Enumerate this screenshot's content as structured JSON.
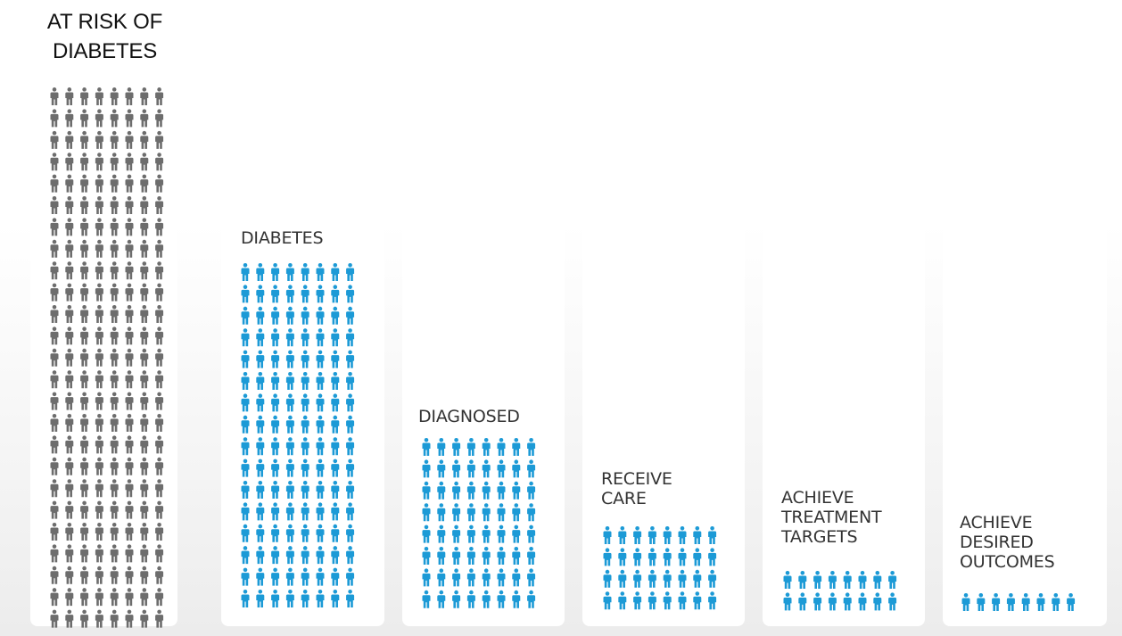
{
  "chart_data": {
    "type": "pictograph",
    "unit": "person-icon",
    "icons_per_row": 8,
    "categories": [
      "AT RISK OF DIABETES",
      "DIABETES",
      "DIAGNOSED",
      "RECEIVE CARE",
      "ACHIEVE TREATMENT TARGETS",
      "ACHIEVE DESIRED OUTCOMES"
    ],
    "values": [
      200,
      128,
      64,
      32,
      16,
      8
    ],
    "colors": [
      "#6d6d6d",
      "#1c9ad6",
      "#1c9ad6",
      "#1c9ad6",
      "#1c9ad6",
      "#1c9ad6"
    ]
  },
  "labels": {
    "at_risk": "AT RISK OF\nDIABETES",
    "diabetes": "DIABETES",
    "diagnosed": "DIAGNOSED",
    "receive_care": "RECEIVE\nCARE",
    "achieve_targets": "ACHIEVE\nTREATMENT\nTARGETS",
    "achieve_outcomes": "ACHIEVE\nDESIRED\nOUTCOMES"
  }
}
